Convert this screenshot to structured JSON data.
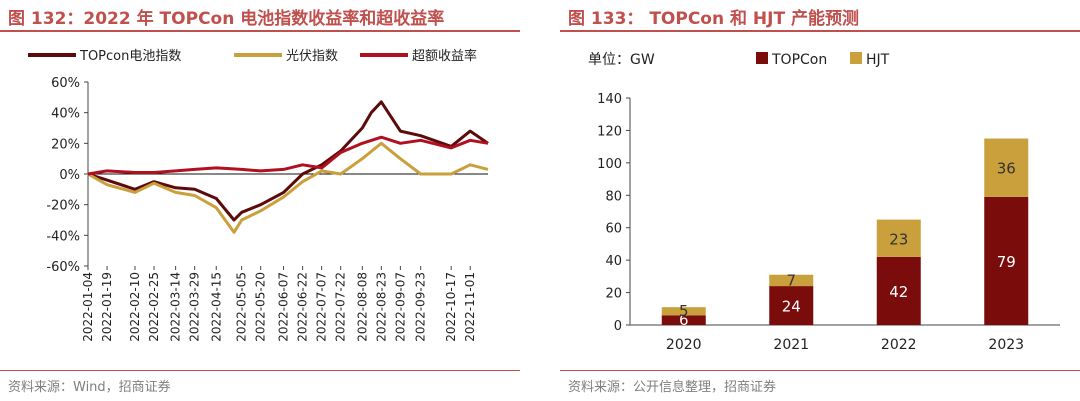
{
  "left": {
    "fig_title": "图 132：2022 年 TOPCon 电池指数收益率和超收益率",
    "source": "资料来源：Wind，招商证券",
    "chart_data": {
      "type": "line",
      "ylim": [
        -60,
        60
      ],
      "yticks": [
        60,
        40,
        20,
        0,
        -20,
        -40,
        -60
      ],
      "ytick_labels": [
        "60%",
        "40%",
        "20%",
        "0%",
        "-20%",
        "-40%",
        "-60%"
      ],
      "x_tick_labels": [
        "2022-01-04",
        "2022-01-19",
        "2022-02-10",
        "2022-02-25",
        "2022-03-14",
        "2022-03-29",
        "2022-04-15",
        "2022-05-05",
        "2022-05-20",
        "2022-06-07",
        "2022-06-22",
        "2022-07-07",
        "2022-07-22",
        "2022-08-08",
        "2022-08-23",
        "2022-09-07",
        "2022-09-23",
        "2022-10-17",
        "2022-11-01"
      ],
      "legend_position": "top",
      "x_start": "2022-01-04",
      "x_end": "2022-11-15",
      "series": [
        {
          "name": "TOPcon电池指数",
          "color": "#5c0a0a",
          "points": [
            [
              "2022-01-04",
              0
            ],
            [
              "2022-01-19",
              -4
            ],
            [
              "2022-02-10",
              -10
            ],
            [
              "2022-02-25",
              -5
            ],
            [
              "2022-03-14",
              -9
            ],
            [
              "2022-03-29",
              -10
            ],
            [
              "2022-04-15",
              -16
            ],
            [
              "2022-04-29",
              -30
            ],
            [
              "2022-05-05",
              -25
            ],
            [
              "2022-05-20",
              -20
            ],
            [
              "2022-06-07",
              -12
            ],
            [
              "2022-06-22",
              0
            ],
            [
              "2022-07-07",
              6
            ],
            [
              "2022-07-22",
              15
            ],
            [
              "2022-08-08",
              30
            ],
            [
              "2022-08-15",
              40
            ],
            [
              "2022-08-23",
              47
            ],
            [
              "2022-09-07",
              28
            ],
            [
              "2022-09-23",
              25
            ],
            [
              "2022-10-17",
              18
            ],
            [
              "2022-11-01",
              28
            ],
            [
              "2022-11-15",
              20
            ]
          ]
        },
        {
          "name": "光伏指数",
          "color": "#c9a03c",
          "points": [
            [
              "2022-01-04",
              0
            ],
            [
              "2022-01-19",
              -7
            ],
            [
              "2022-02-10",
              -12
            ],
            [
              "2022-02-25",
              -6
            ],
            [
              "2022-03-14",
              -12
            ],
            [
              "2022-03-29",
              -14
            ],
            [
              "2022-04-15",
              -22
            ],
            [
              "2022-04-29",
              -38
            ],
            [
              "2022-05-05",
              -30
            ],
            [
              "2022-05-20",
              -24
            ],
            [
              "2022-06-07",
              -15
            ],
            [
              "2022-06-22",
              -5
            ],
            [
              "2022-07-07",
              2
            ],
            [
              "2022-07-22",
              0
            ],
            [
              "2022-08-08",
              10
            ],
            [
              "2022-08-23",
              20
            ],
            [
              "2022-09-07",
              10
            ],
            [
              "2022-09-23",
              0
            ],
            [
              "2022-10-17",
              0
            ],
            [
              "2022-11-01",
              6
            ],
            [
              "2022-11-15",
              3
            ]
          ]
        },
        {
          "name": "超额收益率",
          "color": "#b01020",
          "points": [
            [
              "2022-01-04",
              0
            ],
            [
              "2022-01-19",
              2
            ],
            [
              "2022-02-10",
              1
            ],
            [
              "2022-02-25",
              1
            ],
            [
              "2022-03-14",
              2
            ],
            [
              "2022-03-29",
              3
            ],
            [
              "2022-04-15",
              4
            ],
            [
              "2022-05-05",
              3
            ],
            [
              "2022-05-20",
              2
            ],
            [
              "2022-06-07",
              3
            ],
            [
              "2022-06-22",
              6
            ],
            [
              "2022-07-07",
              4
            ],
            [
              "2022-07-22",
              14
            ],
            [
              "2022-08-08",
              20
            ],
            [
              "2022-08-23",
              24
            ],
            [
              "2022-09-07",
              20
            ],
            [
              "2022-09-23",
              22
            ],
            [
              "2022-10-17",
              17
            ],
            [
              "2022-11-01",
              22
            ],
            [
              "2022-11-15",
              20
            ]
          ]
        }
      ]
    }
  },
  "right": {
    "fig_title": "图 133：  TOPCon 和 HJT 产能预测",
    "source": "资料来源：公开信息整理，招商证券",
    "unit_label": "单位：GW",
    "chart_data": {
      "type": "bar",
      "stacked": true,
      "categories": [
        "2020",
        "2021",
        "2022",
        "2023"
      ],
      "ylim": [
        0,
        140
      ],
      "yticks": [
        0,
        20,
        40,
        60,
        80,
        100,
        120,
        140
      ],
      "legend_position": "top",
      "series": [
        {
          "name": "TOPCon",
          "color": "#7b0c0c",
          "label_color": "#ffffff",
          "values": [
            6,
            24,
            42,
            79
          ]
        },
        {
          "name": "HJT",
          "color": "#c9a03c",
          "label_color": "#333333",
          "values": [
            5,
            7,
            23,
            36
          ]
        }
      ]
    }
  }
}
